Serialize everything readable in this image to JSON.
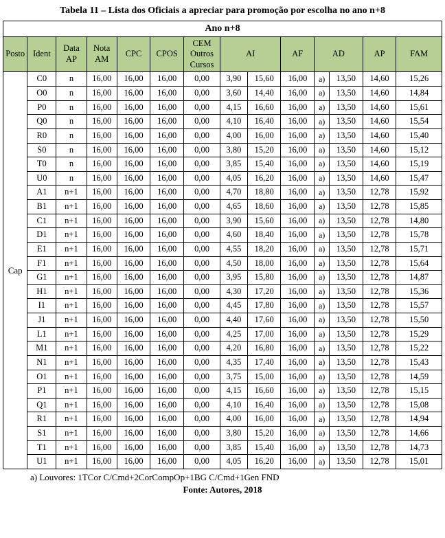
{
  "title": "Tabela 11 – Lista dos Oficiais a apreciar para promoção por escolha no ano n+8",
  "year_header": "Ano n+8",
  "columns": {
    "posto": "Posto",
    "ident": "Ident",
    "data_ap": "Data AP",
    "nota_am": "Nota AM",
    "cpc": "CPC",
    "cpos": "CPOS",
    "cem": "CEM Outros Cursos",
    "ai": "AI",
    "af": "AF",
    "ad": "AD",
    "ap": "AP",
    "fam": "FAM"
  },
  "posto_label": "Cap",
  "header_bg": "#b5cf95",
  "col_widths": {
    "posto": 32,
    "ident": 38,
    "data_ap": 40,
    "nota_am": 40,
    "cpc": 44,
    "cpos": 44,
    "cem": 48,
    "ai1": 36,
    "ai2": 44,
    "af": 44,
    "ad_note": 20,
    "ad": 44,
    "ap": 44,
    "fam": 60
  },
  "rows": [
    {
      "ident": "C0",
      "data_ap": "n",
      "nota_am": "16,00",
      "cpc": "16,00",
      "cpos": "16,00",
      "cem": "0,00",
      "ai1": "3,90",
      "ai2": "15,60",
      "af": "16,00",
      "ad_note": "a)",
      "ad": "13,50",
      "ap": "14,60",
      "fam": "15,26"
    },
    {
      "ident": "O0",
      "data_ap": "n",
      "nota_am": "16,00",
      "cpc": "16,00",
      "cpos": "16,00",
      "cem": "0,00",
      "ai1": "3,60",
      "ai2": "14,40",
      "af": "16,00",
      "ad_note": "a)",
      "ad": "13,50",
      "ap": "14,60",
      "fam": "14,84"
    },
    {
      "ident": "P0",
      "data_ap": "n",
      "nota_am": "16,00",
      "cpc": "16,00",
      "cpos": "16,00",
      "cem": "0,00",
      "ai1": "4,15",
      "ai2": "16,60",
      "af": "16,00",
      "ad_note": "a)",
      "ad": "13,50",
      "ap": "14,60",
      "fam": "15,61"
    },
    {
      "ident": "Q0",
      "data_ap": "n",
      "nota_am": "16,00",
      "cpc": "16,00",
      "cpos": "16,00",
      "cem": "0,00",
      "ai1": "4,10",
      "ai2": "16,40",
      "af": "16,00",
      "ad_note": "a)",
      "ad": "13,50",
      "ap": "14,60",
      "fam": "15,54"
    },
    {
      "ident": "R0",
      "data_ap": "n",
      "nota_am": "16,00",
      "cpc": "16,00",
      "cpos": "16,00",
      "cem": "0,00",
      "ai1": "4,00",
      "ai2": "16,00",
      "af": "16,00",
      "ad_note": "a)",
      "ad": "13,50",
      "ap": "14,60",
      "fam": "15,40"
    },
    {
      "ident": "S0",
      "data_ap": "n",
      "nota_am": "16,00",
      "cpc": "16,00",
      "cpos": "16,00",
      "cem": "0,00",
      "ai1": "3,80",
      "ai2": "15,20",
      "af": "16,00",
      "ad_note": "a)",
      "ad": "13,50",
      "ap": "14,60",
      "fam": "15,12"
    },
    {
      "ident": "T0",
      "data_ap": "n",
      "nota_am": "16,00",
      "cpc": "16,00",
      "cpos": "16,00",
      "cem": "0,00",
      "ai1": "3,85",
      "ai2": "15,40",
      "af": "16,00",
      "ad_note": "a)",
      "ad": "13,50",
      "ap": "14,60",
      "fam": "15,19"
    },
    {
      "ident": "U0",
      "data_ap": "n",
      "nota_am": "16,00",
      "cpc": "16,00",
      "cpos": "16,00",
      "cem": "0,00",
      "ai1": "4,05",
      "ai2": "16,20",
      "af": "16,00",
      "ad_note": "a)",
      "ad": "13,50",
      "ap": "14,60",
      "fam": "15,47"
    },
    {
      "ident": "A1",
      "data_ap": "n+1",
      "nota_am": "16,00",
      "cpc": "16,00",
      "cpos": "16,00",
      "cem": "0,00",
      "ai1": "4,70",
      "ai2": "18,80",
      "af": "16,00",
      "ad_note": "a)",
      "ad": "13,50",
      "ap": "12,78",
      "fam": "15,92"
    },
    {
      "ident": "B1",
      "data_ap": "n+1",
      "nota_am": "16,00",
      "cpc": "16,00",
      "cpos": "16,00",
      "cem": "0,00",
      "ai1": "4,65",
      "ai2": "18,60",
      "af": "16,00",
      "ad_note": "a)",
      "ad": "13,50",
      "ap": "12,78",
      "fam": "15,85"
    },
    {
      "ident": "C1",
      "data_ap": "n+1",
      "nota_am": "16,00",
      "cpc": "16,00",
      "cpos": "16,00",
      "cem": "0,00",
      "ai1": "3,90",
      "ai2": "15,60",
      "af": "16,00",
      "ad_note": "a)",
      "ad": "13,50",
      "ap": "12,78",
      "fam": "14,80"
    },
    {
      "ident": "D1",
      "data_ap": "n+1",
      "nota_am": "16,00",
      "cpc": "16,00",
      "cpos": "16,00",
      "cem": "0,00",
      "ai1": "4,60",
      "ai2": "18,40",
      "af": "16,00",
      "ad_note": "a)",
      "ad": "13,50",
      "ap": "12,78",
      "fam": "15,78"
    },
    {
      "ident": "E1",
      "data_ap": "n+1",
      "nota_am": "16,00",
      "cpc": "16,00",
      "cpos": "16,00",
      "cem": "0,00",
      "ai1": "4,55",
      "ai2": "18,20",
      "af": "16,00",
      "ad_note": "a)",
      "ad": "13,50",
      "ap": "12,78",
      "fam": "15,71"
    },
    {
      "ident": "F1",
      "data_ap": "n+1",
      "nota_am": "16,00",
      "cpc": "16,00",
      "cpos": "16,00",
      "cem": "0,00",
      "ai1": "4,50",
      "ai2": "18,00",
      "af": "16,00",
      "ad_note": "a)",
      "ad": "13,50",
      "ap": "12,78",
      "fam": "15,64"
    },
    {
      "ident": "G1",
      "data_ap": "n+1",
      "nota_am": "16,00",
      "cpc": "16,00",
      "cpos": "16,00",
      "cem": "0,00",
      "ai1": "3,95",
      "ai2": "15,80",
      "af": "16,00",
      "ad_note": "a)",
      "ad": "13,50",
      "ap": "12,78",
      "fam": "14,87"
    },
    {
      "ident": "H1",
      "data_ap": "n+1",
      "nota_am": "16,00",
      "cpc": "16,00",
      "cpos": "16,00",
      "cem": "0,00",
      "ai1": "4,30",
      "ai2": "17,20",
      "af": "16,00",
      "ad_note": "a)",
      "ad": "13,50",
      "ap": "12,78",
      "fam": "15,36"
    },
    {
      "ident": "I1",
      "data_ap": "n+1",
      "nota_am": "16,00",
      "cpc": "16,00",
      "cpos": "16,00",
      "cem": "0,00",
      "ai1": "4,45",
      "ai2": "17,80",
      "af": "16,00",
      "ad_note": "a)",
      "ad": "13,50",
      "ap": "12,78",
      "fam": "15,57"
    },
    {
      "ident": "J1",
      "data_ap": "n+1",
      "nota_am": "16,00",
      "cpc": "16,00",
      "cpos": "16,00",
      "cem": "0,00",
      "ai1": "4,40",
      "ai2": "17,60",
      "af": "16,00",
      "ad_note": "a)",
      "ad": "13,50",
      "ap": "12,78",
      "fam": "15,50"
    },
    {
      "ident": "L1",
      "data_ap": "n+1",
      "nota_am": "16,00",
      "cpc": "16,00",
      "cpos": "16,00",
      "cem": "0,00",
      "ai1": "4,25",
      "ai2": "17,00",
      "af": "16,00",
      "ad_note": "a)",
      "ad": "13,50",
      "ap": "12,78",
      "fam": "15,29"
    },
    {
      "ident": "M1",
      "data_ap": "n+1",
      "nota_am": "16,00",
      "cpc": "16,00",
      "cpos": "16,00",
      "cem": "0,00",
      "ai1": "4,20",
      "ai2": "16,80",
      "af": "16,00",
      "ad_note": "a)",
      "ad": "13,50",
      "ap": "12,78",
      "fam": "15,22"
    },
    {
      "ident": "N1",
      "data_ap": "n+1",
      "nota_am": "16,00",
      "cpc": "16,00",
      "cpos": "16,00",
      "cem": "0,00",
      "ai1": "4,35",
      "ai2": "17,40",
      "af": "16,00",
      "ad_note": "a)",
      "ad": "13,50",
      "ap": "12,78",
      "fam": "15,43"
    },
    {
      "ident": "O1",
      "data_ap": "n+1",
      "nota_am": "16,00",
      "cpc": "16,00",
      "cpos": "16,00",
      "cem": "0,00",
      "ai1": "3,75",
      "ai2": "15,00",
      "af": "16,00",
      "ad_note": "a)",
      "ad": "13,50",
      "ap": "12,78",
      "fam": "14,59"
    },
    {
      "ident": "P1",
      "data_ap": "n+1",
      "nota_am": "16,00",
      "cpc": "16,00",
      "cpos": "16,00",
      "cem": "0,00",
      "ai1": "4,15",
      "ai2": "16,60",
      "af": "16,00",
      "ad_note": "a)",
      "ad": "13,50",
      "ap": "12,78",
      "fam": "15,15"
    },
    {
      "ident": "Q1",
      "data_ap": "n+1",
      "nota_am": "16,00",
      "cpc": "16,00",
      "cpos": "16,00",
      "cem": "0,00",
      "ai1": "4,10",
      "ai2": "16,40",
      "af": "16,00",
      "ad_note": "a)",
      "ad": "13,50",
      "ap": "12,78",
      "fam": "15,08"
    },
    {
      "ident": "R1",
      "data_ap": "n+1",
      "nota_am": "16,00",
      "cpc": "16,00",
      "cpos": "16,00",
      "cem": "0,00",
      "ai1": "4,00",
      "ai2": "16,00",
      "af": "16,00",
      "ad_note": "a)",
      "ad": "13,50",
      "ap": "12,78",
      "fam": "14,94"
    },
    {
      "ident": "S1",
      "data_ap": "n+1",
      "nota_am": "16,00",
      "cpc": "16,00",
      "cpos": "16,00",
      "cem": "0,00",
      "ai1": "3,80",
      "ai2": "15,20",
      "af": "16,00",
      "ad_note": "a)",
      "ad": "13,50",
      "ap": "12,78",
      "fam": "14,66"
    },
    {
      "ident": "T1",
      "data_ap": "n+1",
      "nota_am": "16,00",
      "cpc": "16,00",
      "cpos": "16,00",
      "cem": "0,00",
      "ai1": "3,85",
      "ai2": "15,40",
      "af": "16,00",
      "ad_note": "a)",
      "ad": "13,50",
      "ap": "12,78",
      "fam": "14,73"
    },
    {
      "ident": "U1",
      "data_ap": "n+1",
      "nota_am": "16,00",
      "cpc": "16,00",
      "cpos": "16,00",
      "cem": "0,00",
      "ai1": "4,05",
      "ai2": "16,20",
      "af": "16,00",
      "ad_note": "a)",
      "ad": "13,50",
      "ap": "12,78",
      "fam": "15,01"
    }
  ],
  "footnote": "a)    Louvores: 1TCor C/Cmd+2CorCompOp+1BG C/Cmd+1Gen FND",
  "fonte": "Fonte: Autores, 2018"
}
